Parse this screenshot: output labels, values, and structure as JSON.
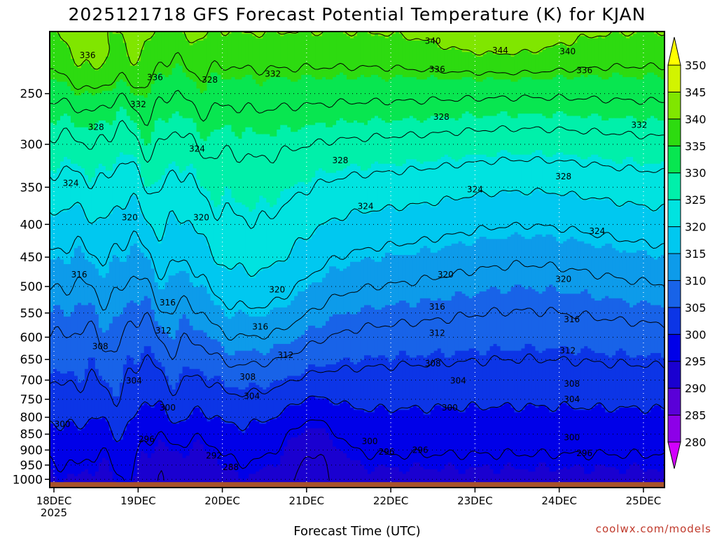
{
  "title": "2025121718 GFS Forecast Potential Temperature (K) for KJAN",
  "credit": "coolwx.com/models",
  "chart_data": {
    "type": "heatmap",
    "title": "2025121718 GFS Forecast Potential Temperature (K) for KJAN",
    "xlabel": "Forecast Time (UTC)",
    "ylabel": "",
    "x_ticks": [
      {
        "label": "18DEC",
        "sublabel": "2025",
        "day": 0
      },
      {
        "label": "19DEC",
        "sublabel": "",
        "day": 1
      },
      {
        "label": "20DEC",
        "sublabel": "",
        "day": 2
      },
      {
        "label": "21DEC",
        "sublabel": "",
        "day": 3
      },
      {
        "label": "22DEC",
        "sublabel": "",
        "day": 4
      },
      {
        "label": "23DEC",
        "sublabel": "",
        "day": 5
      },
      {
        "label": "24DEC",
        "sublabel": "",
        "day": 6
      },
      {
        "label": "25DEC",
        "sublabel": "",
        "day": 7
      }
    ],
    "xlim": [
      -0.05,
      7.25
    ],
    "y_ticks": [
      250,
      300,
      350,
      400,
      450,
      500,
      550,
      600,
      650,
      700,
      750,
      800,
      850,
      900,
      950,
      1000
    ],
    "ylim": [
      1030,
      200
    ],
    "y_scale": "log",
    "colorbar": {
      "levels": [
        280,
        285,
        290,
        295,
        300,
        305,
        310,
        315,
        320,
        325,
        330,
        335,
        340,
        345,
        350
      ],
      "colors": [
        "#d200ff",
        "#8d00e8",
        "#5a00d8",
        "#1a00d0",
        "#0000e8",
        "#0c35e6",
        "#1863e8",
        "#0d9bea",
        "#00c8f0",
        "#00e3e0",
        "#00f0aa",
        "#08e650",
        "#2ddb10",
        "#80e600",
        "#d2f400",
        "#ffff00"
      ]
    },
    "contour_interval": 4,
    "contours": [
      {
        "theta": 288,
        "label_points": [
          [
            2.1,
            958
          ]
        ]
      },
      {
        "theta": 292,
        "label_points": [
          [
            1.9,
            918
          ]
        ]
      },
      {
        "theta": 296,
        "label_points": [
          [
            1.1,
            866
          ],
          [
            3.95,
            906
          ],
          [
            4.35,
            900
          ],
          [
            6.3,
            910
          ]
        ]
      },
      {
        "theta": 300,
        "label_points": [
          [
            0.1,
            820
          ],
          [
            1.35,
            773
          ],
          [
            3.75,
            872
          ],
          [
            4.7,
            773
          ],
          [
            6.15,
            860
          ]
        ]
      },
      {
        "theta": 304,
        "label_points": [
          [
            0.95,
            702
          ],
          [
            2.35,
            742
          ],
          [
            4.8,
            702
          ],
          [
            6.15,
            750
          ]
        ]
      },
      {
        "theta": 308,
        "label_points": [
          [
            0.55,
            620
          ],
          [
            2.3,
            692
          ],
          [
            4.5,
            660
          ],
          [
            6.15,
            710
          ]
        ]
      },
      {
        "theta": 312,
        "label_points": [
          [
            1.3,
            586
          ],
          [
            2.75,
            640
          ],
          [
            4.55,
            591
          ],
          [
            6.1,
            630
          ]
        ]
      },
      {
        "theta": 316,
        "label_points": [
          [
            0.3,
            479
          ],
          [
            1.35,
            530
          ],
          [
            2.45,
            578
          ],
          [
            4.55,
            538
          ],
          [
            6.15,
            563
          ]
        ]
      },
      {
        "theta": 320,
        "label_points": [
          [
            0.9,
            390
          ],
          [
            1.75,
            390
          ],
          [
            2.65,
            506
          ],
          [
            4.65,
            479
          ],
          [
            6.05,
            487
          ]
        ]
      },
      {
        "theta": 324,
        "label_points": [
          [
            0.2,
            345
          ],
          [
            1.7,
            305
          ],
          [
            3.7,
            375
          ],
          [
            5.0,
            353
          ],
          [
            6.45,
            410
          ]
        ]
      },
      {
        "theta": 328,
        "label_points": [
          [
            0.5,
            282
          ],
          [
            1.85,
            238
          ],
          [
            3.4,
            318
          ],
          [
            4.6,
            272
          ],
          [
            6.05,
            337
          ]
        ]
      },
      {
        "theta": 332,
        "label_points": [
          [
            1.0,
            260
          ],
          [
            2.6,
            233
          ],
          [
            6.95,
            280
          ]
        ]
      },
      {
        "theta": 336,
        "label_points": [
          [
            0.4,
            218
          ],
          [
            1.2,
            236
          ],
          [
            4.55,
            229
          ],
          [
            6.3,
            230
          ]
        ]
      },
      {
        "theta": 340,
        "label_points": [
          [
            4.5,
            207
          ],
          [
            6.1,
            215
          ]
        ]
      },
      {
        "theta": 344,
        "label_points": [
          [
            5.3,
            214
          ]
        ]
      }
    ],
    "ground_level_hPa": 1010,
    "ground_color": "#a8522a",
    "grid": "dotted",
    "legend": "colorbar-right"
  }
}
